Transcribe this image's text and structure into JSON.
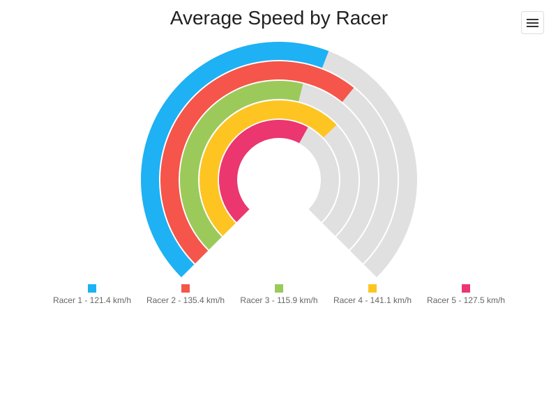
{
  "chart_data": {
    "type": "radial-bar",
    "title": "Average Speed by Racer",
    "unit": "km/h",
    "max": 210,
    "series": [
      {
        "name": "Racer 1",
        "value": 121.4,
        "color": "#1eb1f4"
      },
      {
        "name": "Racer 2",
        "value": 135.4,
        "color": "#f5554a"
      },
      {
        "name": "Racer 3",
        "value": 115.9,
        "color": "#9bca5b"
      },
      {
        "name": "Racer 4",
        "value": 141.1,
        "color": "#fec522"
      },
      {
        "name": "Racer 5",
        "value": 127.5,
        "color": "#eb366f"
      }
    ],
    "track_color": "#e0e0e0",
    "legend_placement": "bottom"
  },
  "toolbar": {
    "menu_icon": "hamburger-menu-icon"
  }
}
